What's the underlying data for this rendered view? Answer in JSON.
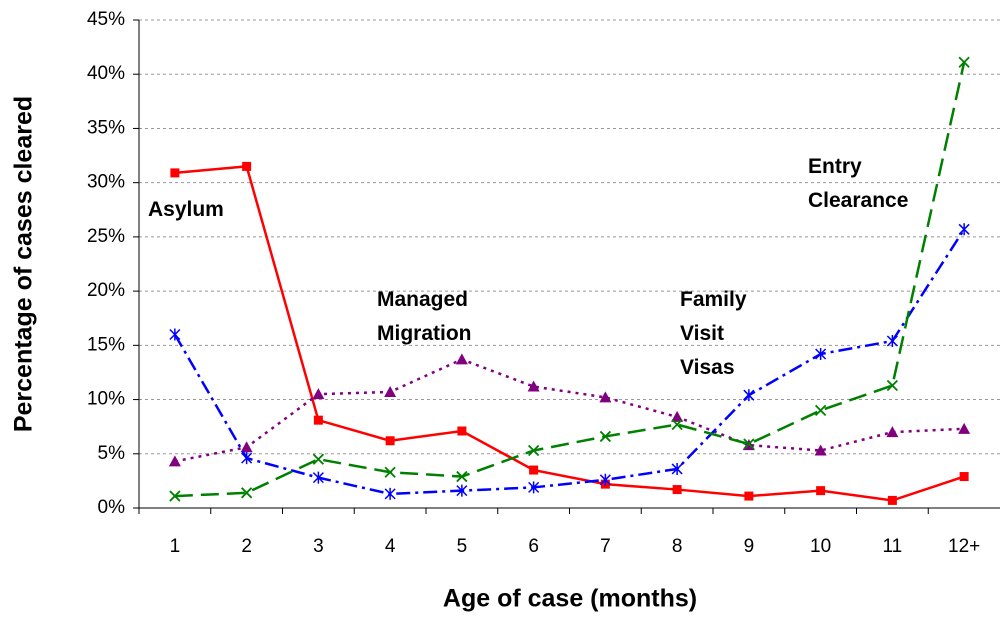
{
  "chart_data": {
    "type": "line",
    "x_label": "Age of case (months)",
    "y_label": "Percentage of cases cleared",
    "categories": [
      "1",
      "2",
      "3",
      "4",
      "5",
      "6",
      "7",
      "8",
      "9",
      "10",
      "11",
      "12+"
    ],
    "ylim": [
      0,
      45
    ],
    "yticks": [
      {
        "value": 0,
        "label": "0%"
      },
      {
        "value": 5,
        "label": "5%"
      },
      {
        "value": 10,
        "label": "10%"
      },
      {
        "value": 15,
        "label": "15%"
      },
      {
        "value": 20,
        "label": "20%"
      },
      {
        "value": 25,
        "label": "25%"
      },
      {
        "value": 30,
        "label": "30%"
      },
      {
        "value": 35,
        "label": "35%"
      },
      {
        "value": 40,
        "label": "40%"
      },
      {
        "value": 45,
        "label": "45%"
      }
    ],
    "grid": true,
    "series": [
      {
        "name": "Asylum",
        "color": "#ff0000",
        "values": [
          30.9,
          31.5,
          8.1,
          6.2,
          7.1,
          3.5,
          2.2,
          1.7,
          1.1,
          1.6,
          0.7,
          2.9
        ]
      },
      {
        "name": "Managed Migration",
        "color": "#800080",
        "values": [
          4.3,
          5.6,
          10.5,
          10.7,
          13.7,
          11.2,
          10.2,
          8.4,
          5.8,
          5.3,
          7.0,
          7.3
        ]
      },
      {
        "name": "Family Visit Visas",
        "color": "#0000ff",
        "values": [
          16.0,
          4.6,
          2.8,
          1.3,
          1.6,
          1.9,
          2.6,
          3.6,
          10.4,
          14.2,
          15.4,
          25.7
        ]
      },
      {
        "name": "Entry Clearance",
        "color": "#008000",
        "values": [
          1.1,
          1.4,
          4.5,
          3.3,
          2.9,
          5.3,
          6.6,
          7.7,
          5.9,
          9.0,
          11.3,
          41.1
        ]
      }
    ]
  }
}
